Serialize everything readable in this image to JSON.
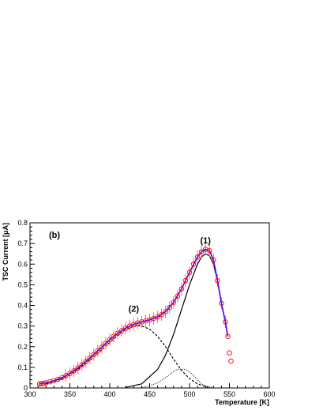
{
  "chart_data": {
    "type": "scatter",
    "panel_label": "(b)",
    "xlabel": "Temperature [K]",
    "ylabel": "TSC Current [μA]",
    "xlim": [
      300,
      600
    ],
    "ylim": [
      0,
      0.8
    ],
    "x_ticks": [
      300,
      350,
      400,
      450,
      500,
      550,
      600
    ],
    "y_ticks": [
      0,
      0.1,
      0.2,
      0.3,
      0.4,
      0.5,
      0.6,
      0.7,
      0.8
    ],
    "grid": false,
    "annotations": [
      {
        "text": "(1)",
        "x": 520,
        "y": 0.7
      },
      {
        "text": "(2)",
        "x": 430,
        "y": 0.37
      }
    ],
    "colors": {
      "markers": "#ff0000",
      "error_bars": "#ff6b4a",
      "total_fit": "#0000ff",
      "fit_inner": "#cc00cc",
      "components": "#000000"
    },
    "series": [
      {
        "style": "markers",
        "x": [
          312,
          314,
          317,
          320,
          325,
          330,
          335,
          340,
          345,
          350,
          355,
          360,
          365,
          370,
          375,
          380,
          385,
          390,
          395,
          400,
          405,
          410,
          415,
          420,
          425,
          430,
          435,
          440,
          445,
          450,
          455,
          460,
          465,
          470,
          475,
          480,
          485,
          490,
          495,
          500,
          505,
          510,
          515,
          520,
          525,
          530,
          535,
          540,
          545,
          548,
          550,
          552
        ],
        "y": [
          0.02,
          0.02,
          0.022,
          0.025,
          0.03,
          0.035,
          0.042,
          0.05,
          0.06,
          0.07,
          0.083,
          0.097,
          0.112,
          0.128,
          0.145,
          0.162,
          0.18,
          0.198,
          0.216,
          0.234,
          0.25,
          0.265,
          0.278,
          0.29,
          0.3,
          0.308,
          0.315,
          0.32,
          0.325,
          0.33,
          0.336,
          0.344,
          0.355,
          0.37,
          0.39,
          0.415,
          0.445,
          0.48,
          0.52,
          0.56,
          0.6,
          0.635,
          0.66,
          0.672,
          0.665,
          0.62,
          0.52,
          0.41,
          0.32,
          0.25,
          0.17,
          0.13
        ],
        "error": 0.03
      },
      {
        "style": "total-fit",
        "x": [
          312,
          320,
          330,
          340,
          350,
          360,
          370,
          380,
          390,
          400,
          410,
          420,
          430,
          440,
          450,
          460,
          470,
          480,
          490,
          500,
          510,
          515,
          520,
          525,
          530,
          535,
          540,
          545,
          548
        ],
        "y": [
          0.02,
          0.025,
          0.035,
          0.05,
          0.07,
          0.097,
          0.128,
          0.162,
          0.198,
          0.234,
          0.265,
          0.29,
          0.308,
          0.32,
          0.33,
          0.344,
          0.37,
          0.415,
          0.48,
          0.56,
          0.635,
          0.66,
          0.672,
          0.665,
          0.62,
          0.52,
          0.41,
          0.32,
          0.25
        ]
      },
      {
        "style": "component-1",
        "x": [
          420,
          440,
          460,
          470,
          480,
          490,
          500,
          510,
          515,
          520,
          525,
          530,
          535,
          540,
          545,
          548
        ],
        "y": [
          0.003,
          0.02,
          0.09,
          0.16,
          0.26,
          0.38,
          0.5,
          0.6,
          0.635,
          0.65,
          0.64,
          0.6,
          0.52,
          0.41,
          0.32,
          0.25
        ]
      },
      {
        "style": "component-2",
        "x": [
          320,
          340,
          360,
          380,
          400,
          410,
          420,
          430,
          435,
          440,
          450,
          460,
          470,
          480,
          490,
          500,
          510,
          520,
          525
        ],
        "y": [
          0.02,
          0.045,
          0.09,
          0.15,
          0.22,
          0.255,
          0.282,
          0.298,
          0.302,
          0.3,
          0.285,
          0.25,
          0.2,
          0.14,
          0.085,
          0.045,
          0.02,
          0.007,
          0.003
        ]
      },
      {
        "style": "component-3",
        "x": [
          440,
          450,
          460,
          470,
          480,
          485,
          490,
          495,
          500,
          505,
          510,
          515,
          520,
          530
        ],
        "y": [
          0.003,
          0.01,
          0.025,
          0.05,
          0.08,
          0.09,
          0.092,
          0.09,
          0.078,
          0.06,
          0.04,
          0.02,
          0.008,
          0.002
        ]
      }
    ]
  }
}
